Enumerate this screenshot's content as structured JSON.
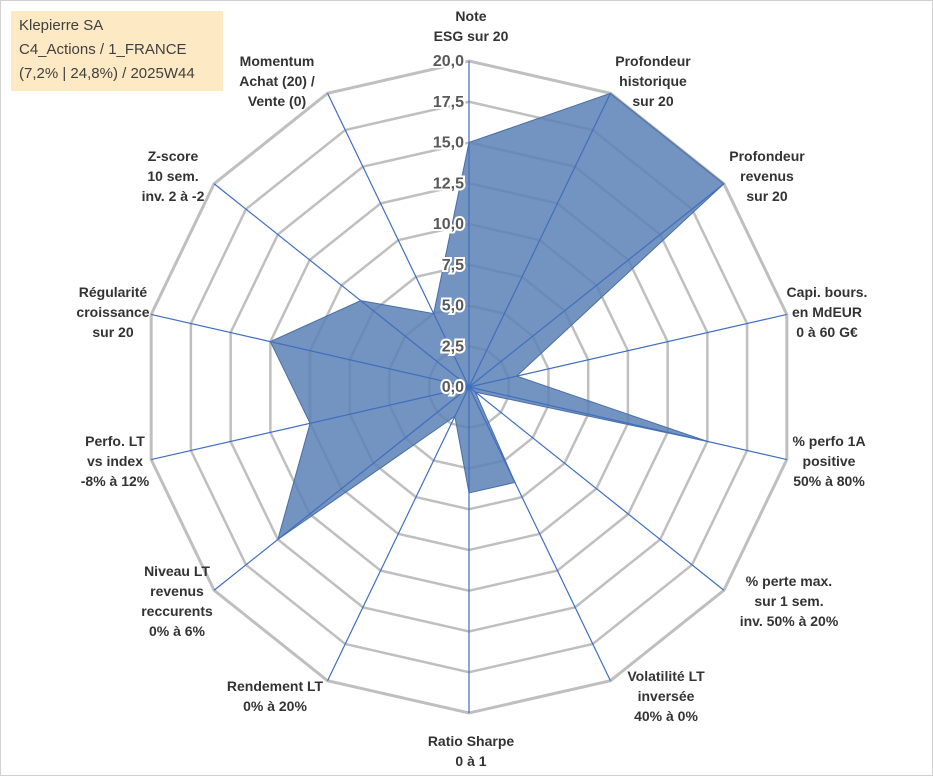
{
  "header": {
    "lines": [
      "Klepierre SA",
      "C4_Actions / 1_FRANCE",
      "(7,2% | 24,8%) / 2025W44"
    ]
  },
  "chart_data": {
    "type": "radar",
    "title": "",
    "rmin": 0,
    "rmax": 20,
    "ticks": [
      "0,0",
      "2,5",
      "5,0",
      "7,5",
      "10,0",
      "12,5",
      "15,0",
      "17,5",
      "20,0"
    ],
    "axes": [
      {
        "label": [
          "Note",
          "ESG sur 20"
        ],
        "value": 15
      },
      {
        "label": [
          "Profondeur",
          "historique",
          "sur 20"
        ],
        "value": 20
      },
      {
        "label": [
          "Profondeur",
          "revenus",
          "sur 20"
        ],
        "value": 20
      },
      {
        "label": [
          "Capi. bours.",
          "en MdEUR",
          "0 à 60 G€"
        ],
        "value": 3
      },
      {
        "label": [
          "% perfo 1A",
          "positive",
          "50% à 80%"
        ],
        "value": 15
      },
      {
        "label": [
          "% perte max.",
          "sur 1 sem.",
          "inv. 50% à 20%"
        ],
        "value": 0.5
      },
      {
        "label": [
          "Volatilité LT",
          "inversée",
          "40% à 0%"
        ],
        "value": 6.5
      },
      {
        "label": [
          "Ratio Sharpe",
          "0 à 1"
        ],
        "value": 6.5
      },
      {
        "label": [
          "Rendement LT",
          "0% à 20%"
        ],
        "value": 2
      },
      {
        "label": [
          "Niveau LT",
          "revenus",
          "reccurents",
          "0% à 6%"
        ],
        "value": 15
      },
      {
        "label": [
          "Perfo. LT",
          "vs index",
          "-8% à 12%"
        ],
        "value": 10
      },
      {
        "label": [
          "Régularité",
          "croissance",
          "sur 20"
        ],
        "value": 12.5
      },
      {
        "label": [
          "Z-score",
          "10 sem.",
          "inv. 2 à -2"
        ],
        "value": 8.5
      },
      {
        "label": [
          "Momentum",
          "Achat (20) /",
          "Vente (0)"
        ],
        "value": 5
      }
    ],
    "series": [
      {
        "name": "Klepierre SA",
        "color": "#5b80b5"
      }
    ]
  },
  "colors": {
    "fill": "#5b80b5",
    "fill_opacity": "0.85",
    "spoke": "#3f6fbf",
    "grid": "#bfbfbf",
    "info_bg": "#fde9c4"
  }
}
